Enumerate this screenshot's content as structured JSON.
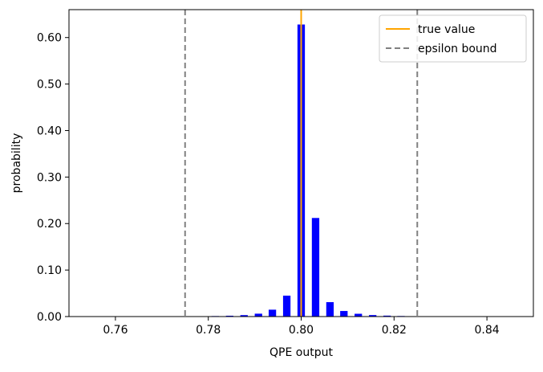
{
  "chart_data": {
    "type": "bar",
    "title": "",
    "xlabel": "QPE output",
    "ylabel": "probability",
    "xlim": [
      0.75,
      0.85
    ],
    "ylim": [
      0,
      0.66
    ],
    "xticks": [
      0.76,
      0.78,
      0.8,
      0.82,
      0.84
    ],
    "xtick_labels": [
      "0.76",
      "0.78",
      "0.80",
      "0.82",
      "0.84"
    ],
    "yticks": [
      0.0,
      0.1,
      0.2,
      0.3,
      0.4,
      0.5,
      0.6
    ],
    "ytick_labels": [
      "0.00",
      "0.10",
      "0.20",
      "0.30",
      "0.40",
      "0.50",
      "0.60"
    ],
    "grid": false,
    "legend_position": "top-right",
    "bar_color": "#0000ff",
    "bars": [
      {
        "x": 0.7754,
        "y": 0.0005
      },
      {
        "x": 0.7785,
        "y": 0.0007
      },
      {
        "x": 0.7815,
        "y": 0.0011
      },
      {
        "x": 0.7846,
        "y": 0.0018
      },
      {
        "x": 0.7877,
        "y": 0.0031
      },
      {
        "x": 0.7908,
        "y": 0.0062
      },
      {
        "x": 0.7938,
        "y": 0.0148
      },
      {
        "x": 0.7969,
        "y": 0.045
      },
      {
        "x": 0.8,
        "y": 0.628
      },
      {
        "x": 0.8031,
        "y": 0.212
      },
      {
        "x": 0.8062,
        "y": 0.031
      },
      {
        "x": 0.8092,
        "y": 0.012
      },
      {
        "x": 0.8123,
        "y": 0.006
      },
      {
        "x": 0.8154,
        "y": 0.0032
      },
      {
        "x": 0.8185,
        "y": 0.002
      },
      {
        "x": 0.8215,
        "y": 0.0012
      },
      {
        "x": 0.8246,
        "y": 0.0007
      }
    ],
    "vlines": [
      {
        "name": "true value",
        "x": 0.8,
        "color": "#ffa500",
        "style": "solid"
      },
      {
        "name": "epsilon bound",
        "x": 0.775,
        "color": "#808080",
        "style": "dashed"
      },
      {
        "name": "epsilon bound",
        "x": 0.825,
        "color": "#808080",
        "style": "dashed"
      }
    ],
    "legend": [
      {
        "label": "true value",
        "color": "#ffa500",
        "style": "solid"
      },
      {
        "label": "epsilon bound",
        "color": "#808080",
        "style": "dashed"
      }
    ]
  }
}
